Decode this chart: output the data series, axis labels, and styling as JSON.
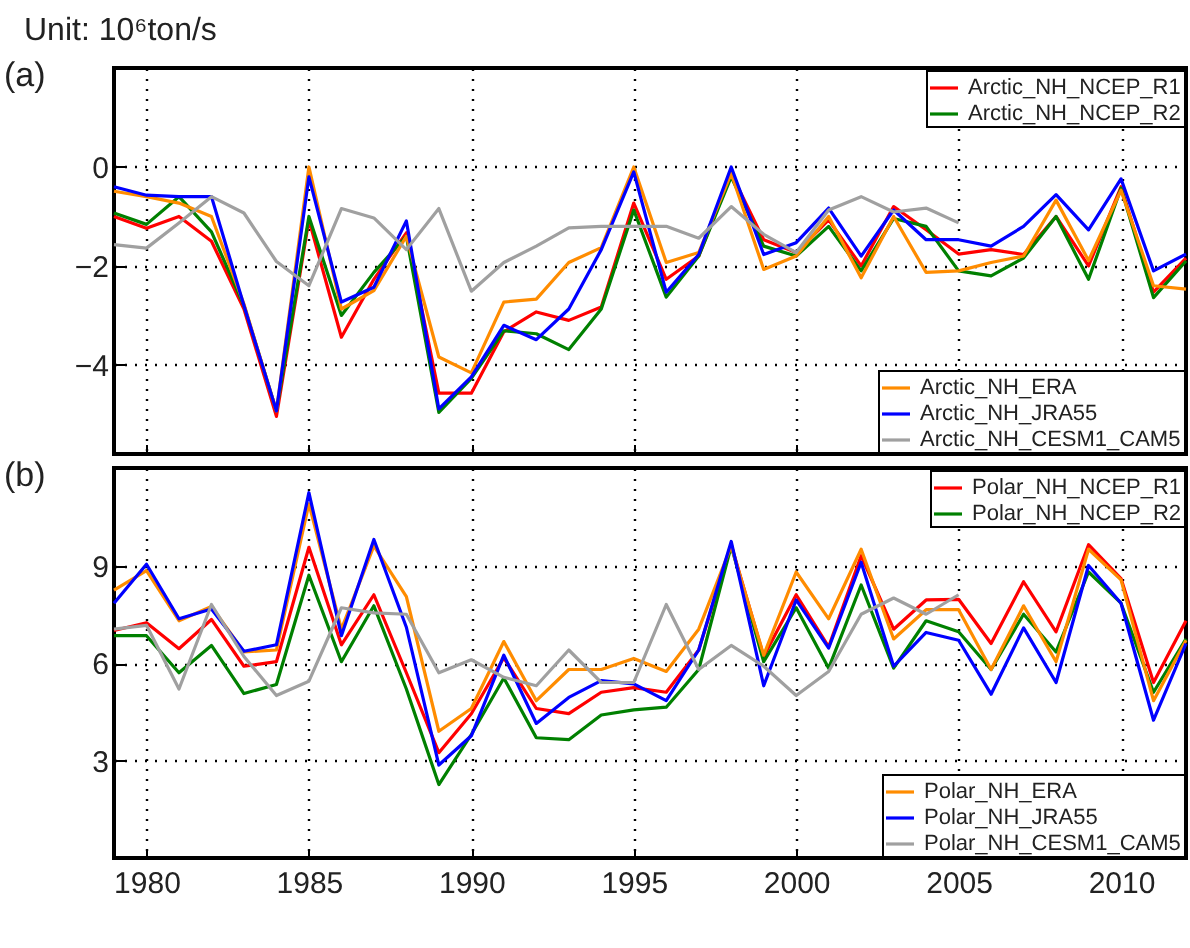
{
  "chart_data": [
    {
      "type": "line",
      "title": "Unit: 10⁶ton/s",
      "annotations": [
        "(a)"
      ],
      "x": [
        1979,
        1980,
        1981,
        1982,
        1983,
        1984,
        1985,
        1986,
        1987,
        1988,
        1989,
        1990,
        1991,
        1992,
        1993,
        1994,
        1995,
        1996,
        1997,
        1998,
        1999,
        2000,
        2001,
        2002,
        2003,
        2004,
        2005,
        2006,
        2007,
        2008,
        2009,
        2010,
        2011,
        2012
      ],
      "xlim": [
        1979,
        2012
      ],
      "xticks": [
        1980,
        1985,
        1990,
        1995,
        2000,
        2005,
        2010
      ],
      "ylim": [
        -5.8,
        2
      ],
      "yticks": [
        -4,
        -2,
        0
      ],
      "grid": true,
      "legend": "right",
      "tick_labels": "y",
      "series": [
        {
          "name": "Arctic_NH_NCEP_R1",
          "color": "#ff0000",
          "values": [
            -1.0,
            -1.24,
            -1.0,
            -1.5,
            -2.87,
            -5.04,
            -1.07,
            -3.44,
            -2.27,
            -1.33,
            -4.57,
            -4.57,
            -3.33,
            -2.93,
            -3.1,
            -2.83,
            -0.73,
            -2.27,
            -1.8,
            -0.13,
            -1.47,
            -1.73,
            -1.07,
            -2.0,
            -0.8,
            -1.27,
            -1.76,
            -1.67,
            -1.77,
            -1.0,
            -2.0,
            -0.4,
            -2.53,
            -1.84
          ]
        },
        {
          "name": "Arctic_NH_NCEP_R2",
          "color": "#008000",
          "values": [
            -0.93,
            -1.16,
            -0.6,
            -1.31,
            -2.8,
            -4.93,
            -1.0,
            -3.0,
            -2.13,
            -1.4,
            -4.96,
            -4.27,
            -3.31,
            -3.37,
            -3.69,
            -2.87,
            -0.87,
            -2.63,
            -1.8,
            -0.2,
            -1.6,
            -1.8,
            -1.2,
            -2.1,
            -1.04,
            -1.2,
            -2.1,
            -2.2,
            -1.84,
            -1.0,
            -2.27,
            -0.43,
            -2.64,
            -1.9
          ]
        },
        {
          "name": "Arctic_NH_ERA",
          "color": "#ff8c00",
          "values": [
            -0.49,
            -0.6,
            -0.73,
            -1.0,
            -2.77,
            -4.93,
            0,
            -2.87,
            -2.5,
            -1.4,
            -3.84,
            -4.16,
            -2.73,
            -2.67,
            -1.93,
            -1.63,
            0,
            -1.93,
            -1.73,
            -0.13,
            -2.07,
            -1.8,
            -1.0,
            -2.24,
            -1.0,
            -2.13,
            -2.1,
            -1.93,
            -1.8,
            -0.67,
            -1.89,
            -0.47,
            -2.4,
            -2.47
          ]
        },
        {
          "name": "Arctic_NH_JRA55",
          "color": "#0000ff",
          "values": [
            -0.4,
            -0.57,
            -0.6,
            -0.6,
            -2.8,
            -4.93,
            -0.2,
            -2.73,
            -2.43,
            -1.09,
            -4.89,
            -4.24,
            -3.2,
            -3.49,
            -2.87,
            -1.67,
            -0.1,
            -2.53,
            -1.77,
            0,
            -1.77,
            -1.53,
            -0.83,
            -1.8,
            -0.87,
            -1.47,
            -1.47,
            -1.6,
            -1.2,
            -0.56,
            -1.27,
            -0.24,
            -2.1,
            -1.76
          ]
        },
        {
          "name": "Arctic_NH_CESM1_CAM5",
          "color": "#a0a0a0",
          "values": [
            -1.57,
            -1.64,
            -1.13,
            -0.6,
            -0.93,
            -1.91,
            -2.4,
            -0.84,
            -1.03,
            -1.67,
            -0.84,
            -2.51,
            -1.93,
            -1.6,
            -1.23,
            -1.2,
            -1.2,
            -1.2,
            -1.44,
            -0.8,
            -1.36,
            -1.73,
            -0.87,
            -0.6,
            -0.91,
            -0.83,
            -1.13,
            null,
            null,
            null,
            null,
            null,
            null,
            null
          ]
        }
      ]
    },
    {
      "type": "line",
      "annotations": [
        "(b)"
      ],
      "x": [
        1979,
        1980,
        1981,
        1982,
        1983,
        1984,
        1985,
        1986,
        1987,
        1988,
        1989,
        1990,
        1991,
        1992,
        1993,
        1994,
        1995,
        1996,
        1997,
        1998,
        1999,
        2000,
        2001,
        2002,
        2003,
        2004,
        2005,
        2006,
        2007,
        2008,
        2009,
        2010,
        2011,
        2012
      ],
      "xlim": [
        1979,
        2012
      ],
      "xticks": [
        1980,
        1985,
        1990,
        1995,
        2000,
        2005,
        2010
      ],
      "ylim": [
        0,
        12
      ],
      "yticks": [
        3,
        6,
        9
      ],
      "grid": true,
      "legend": "right",
      "series": [
        {
          "name": "Polar_NH_NCEP_R1",
          "color": "#ff0000",
          "values": [
            7.0,
            7.24,
            6.44,
            7.34,
            5.9,
            6.04,
            9.56,
            6.56,
            8.1,
            5.7,
            3.24,
            4.44,
            6.16,
            4.6,
            4.44,
            5.1,
            5.24,
            5.1,
            6.4,
            9.64,
            6.2,
            8.1,
            6.5,
            9.3,
            7.04,
            7.94,
            7.96,
            6.6,
            8.5,
            6.96,
            9.64,
            8.6,
            5.4,
            7.3
          ]
        },
        {
          "name": "Polar_NH_NCEP_R2",
          "color": "#008000",
          "values": [
            6.84,
            6.84,
            5.7,
            6.54,
            5.06,
            5.34,
            8.7,
            6.04,
            7.76,
            5.2,
            2.26,
            3.8,
            5.54,
            3.7,
            3.64,
            4.4,
            4.56,
            4.64,
            5.8,
            9.6,
            6.04,
            7.7,
            5.84,
            8.4,
            5.84,
            7.3,
            6.96,
            5.8,
            7.5,
            6.34,
            8.8,
            7.84,
            5.1,
            6.74
          ]
        },
        {
          "name": "Polar_NH_ERA",
          "color": "#ff8c00",
          "values": [
            8.24,
            8.84,
            7.3,
            7.74,
            6.34,
            6.4,
            10.9,
            7.04,
            9.6,
            8.04,
            3.9,
            4.6,
            6.66,
            4.84,
            5.8,
            5.8,
            6.14,
            5.74,
            7.04,
            9.6,
            6.24,
            8.8,
            7.36,
            9.5,
            6.74,
            7.64,
            7.64,
            5.8,
            7.76,
            6.04,
            9.5,
            8.56,
            4.84,
            6.7
          ]
        },
        {
          "name": "Polar_NH_JRA55",
          "color": "#0000ff",
          "values": [
            7.84,
            9.04,
            7.36,
            7.66,
            6.36,
            6.56,
            11.24,
            6.84,
            9.8,
            7.1,
            2.86,
            3.76,
            6.24,
            4.14,
            4.94,
            5.46,
            5.36,
            4.84,
            6.4,
            9.74,
            5.3,
            7.94,
            6.46,
            9.1,
            5.9,
            6.94,
            6.7,
            5.04,
            7.08,
            5.4,
            9.0,
            7.84,
            4.24,
            6.6
          ]
        },
        {
          "name": "Polar_NH_CESM1_CAM5",
          "color": "#a0a0a0",
          "values": [
            7.04,
            7.16,
            5.2,
            7.8,
            6.2,
            5.0,
            5.44,
            7.7,
            7.54,
            7.5,
            5.7,
            6.1,
            5.56,
            5.3,
            6.4,
            5.4,
            5.4,
            7.8,
            5.8,
            6.54,
            5.9,
            5.0,
            5.74,
            7.5,
            8.0,
            7.5,
            8.1,
            null,
            null,
            null,
            null,
            null,
            null,
            null
          ]
        }
      ]
    }
  ]
}
